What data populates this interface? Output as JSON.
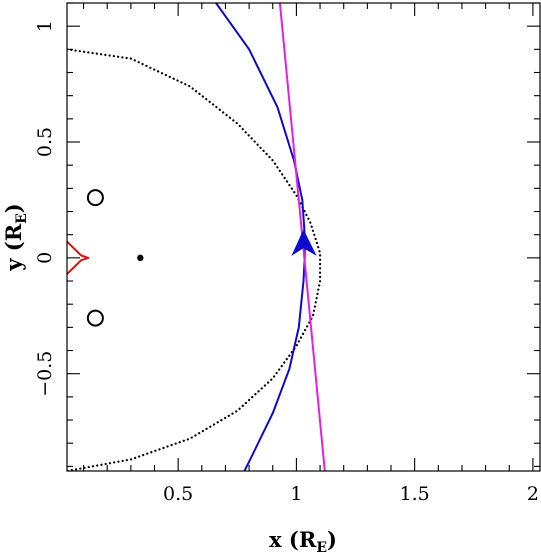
{
  "chart_data": {
    "type": "line",
    "title": "",
    "xlabel": "x (R",
    "xlabel_sub": "E",
    "xlabel_close": ")",
    "ylabel": "y (R",
    "ylabel_sub": "E",
    "ylabel_close": ")",
    "xlim": [
      0.03,
      2.03
    ],
    "ylim": [
      -0.92,
      1.1
    ],
    "x_ticks": [
      0.5,
      1,
      1.5,
      2
    ],
    "x_tick_labels": [
      "0.5",
      "1",
      "1.5",
      "2"
    ],
    "y_ticks": [
      -0.5,
      0,
      0.5,
      1
    ],
    "y_tick_labels": [
      "−0.5",
      "0",
      "0.5",
      "1"
    ],
    "grid": false,
    "colors": {
      "blue": "#0b0bd0",
      "magenta": "#e51ee5",
      "red": "#e01010",
      "black": "#000000"
    },
    "series": [
      {
        "kind": "dotted-curve",
        "color": "#000000",
        "points": [
          [
            0.03,
            0.9
          ],
          [
            0.3,
            0.86
          ],
          [
            0.55,
            0.74
          ],
          [
            0.75,
            0.58
          ],
          [
            0.9,
            0.42
          ],
          [
            1.0,
            0.27
          ],
          [
            1.06,
            0.15
          ],
          [
            1.1,
            0.02
          ],
          [
            1.1,
            -0.1
          ],
          [
            1.07,
            -0.25
          ],
          [
            1.0,
            -0.38
          ],
          [
            0.9,
            -0.52
          ],
          [
            0.75,
            -0.66
          ],
          [
            0.55,
            -0.78
          ],
          [
            0.3,
            -0.87
          ],
          [
            0.03,
            -0.92
          ]
        ]
      },
      {
        "kind": "solid-curve",
        "color": "#0b0bd0",
        "points": [
          [
            0.66,
            1.1
          ],
          [
            0.8,
            0.9
          ],
          [
            0.92,
            0.65
          ],
          [
            0.99,
            0.42
          ],
          [
            1.025,
            0.25
          ],
          [
            1.035,
            0.1
          ],
          [
            1.035,
            0
          ],
          [
            1.03,
            -0.1
          ],
          [
            1.01,
            -0.3
          ],
          [
            0.97,
            -0.48
          ],
          [
            0.9,
            -0.67
          ],
          [
            0.8,
            -0.88
          ],
          [
            0.78,
            -0.92
          ]
        ]
      },
      {
        "kind": "solid-line",
        "color": "#e51ee5",
        "points": [
          [
            0.93,
            1.1
          ],
          [
            1.12,
            -0.92
          ]
        ]
      },
      {
        "kind": "solid-curve",
        "color": "#e01010",
        "points": [
          [
            0.03,
            0.07
          ],
          [
            0.06,
            0.04
          ],
          [
            0.09,
            0.01
          ],
          [
            0.12,
            0.0
          ],
          [
            0.09,
            -0.01
          ],
          [
            0.06,
            -0.04
          ],
          [
            0.03,
            -0.07
          ]
        ]
      }
    ],
    "markers": [
      {
        "kind": "open-circle",
        "x": 0.15,
        "y": 0.26,
        "color": "#000000"
      },
      {
        "kind": "open-circle",
        "x": 0.15,
        "y": -0.26,
        "color": "#000000"
      },
      {
        "kind": "dot",
        "x": 0.34,
        "y": 0.0,
        "color": "#000000"
      },
      {
        "kind": "dot",
        "x": 1.03,
        "y": 0.09,
        "color": "#0b0bd0"
      },
      {
        "kind": "arrowhead",
        "x": 1.03,
        "y": 0.07,
        "color": "#0b0bd0"
      }
    ]
  }
}
